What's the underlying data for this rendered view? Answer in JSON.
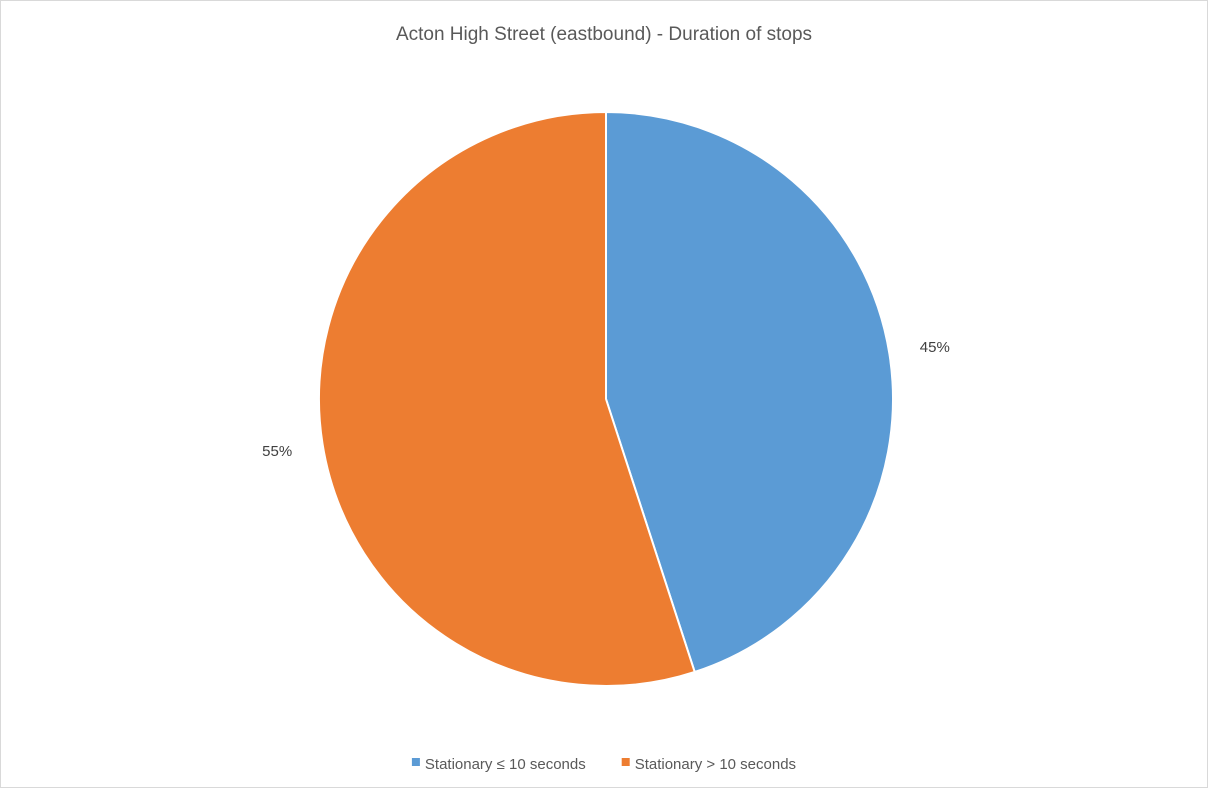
{
  "chart_data": {
    "type": "pie",
    "title": "Acton High Street (eastbound) - Duration of stops",
    "series": [
      {
        "name": "Stationary ≤ 10 seconds",
        "value": 45,
        "label": "45%",
        "color": "#5b9bd5"
      },
      {
        "name": "Stationary > 10 seconds",
        "value": 55,
        "label": "55%",
        "color": "#ed7d31"
      }
    ],
    "start_angle_deg": 0,
    "direction": "clockwise",
    "legend_position": "bottom",
    "slice_border_color": "#ffffff"
  }
}
